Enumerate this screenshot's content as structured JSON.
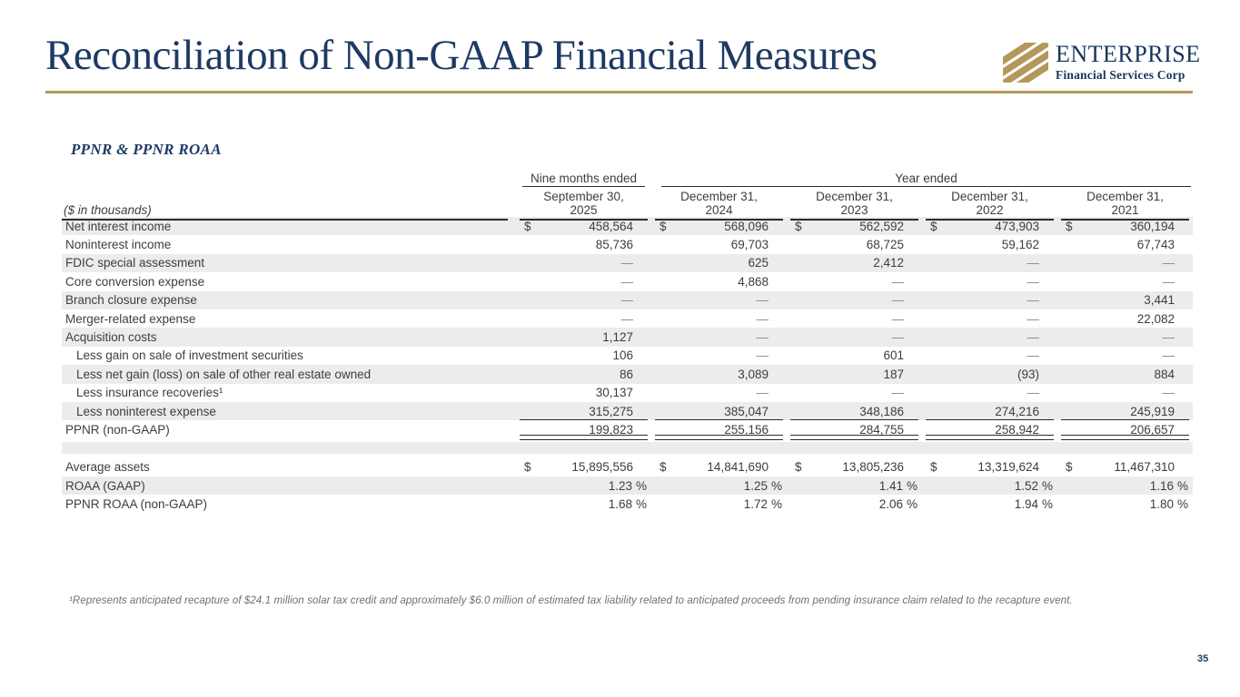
{
  "slide": {
    "title": "Reconciliation of Non-GAAP Financial Measures",
    "page_number": "35",
    "accent_gold": "#b5995a",
    "navy": "#1d3a63"
  },
  "logo": {
    "name": "ENTERPRISE",
    "subtitle": "Financial Services Corp",
    "mark": "gold-diagonal-stripes",
    "gold": "#b3985c"
  },
  "section": {
    "heading": "PPNR & PPNR ROAA",
    "units_note": "($ in thousands)"
  },
  "table": {
    "currency_symbol": "$",
    "group_headers": [
      {
        "label": "Nine months ended",
        "span": 1
      },
      {
        "label": "Year ended",
        "span": 4
      }
    ],
    "column_headers": [
      {
        "line1": "September 30,",
        "line2": "2025"
      },
      {
        "line1": "December 31,",
        "line2": "2024"
      },
      {
        "line1": "December 31,",
        "line2": "2023"
      },
      {
        "line1": "December 31,",
        "line2": "2022"
      },
      {
        "line1": "December 31,",
        "line2": "2021"
      }
    ],
    "rows": [
      {
        "label": "Net interest income",
        "dollar": true,
        "values": [
          "458,564",
          "568,096",
          "562,592",
          "473,903",
          "360,194"
        ]
      },
      {
        "label": "Noninterest income",
        "values": [
          "85,736",
          "69,703",
          "68,725",
          "59,162",
          "67,743"
        ]
      },
      {
        "label": "FDIC special assessment",
        "values": [
          "—",
          "625",
          "2,412",
          "—",
          "—"
        ]
      },
      {
        "label": "Core conversion expense",
        "values": [
          "—",
          "4,868",
          "—",
          "—",
          "—"
        ]
      },
      {
        "label": "Branch closure expense",
        "values": [
          "—",
          "—",
          "—",
          "—",
          "3,441"
        ]
      },
      {
        "label": "Merger-related expense",
        "values": [
          "—",
          "—",
          "—",
          "—",
          "22,082"
        ]
      },
      {
        "label": "Acquisition costs",
        "values": [
          "1,127",
          "—",
          "—",
          "—",
          "—"
        ]
      },
      {
        "label": "Less gain on sale of investment securities",
        "indent": true,
        "values": [
          "106",
          "—",
          "601",
          "—",
          "—"
        ]
      },
      {
        "label": "Less net gain (loss) on sale of other real estate owned",
        "indent": true,
        "values": [
          "86",
          "3,089",
          "187",
          "(93)",
          "884"
        ]
      },
      {
        "label": "Less insurance recoveries¹",
        "indent": true,
        "values": [
          "30,137",
          "—",
          "—",
          "—",
          "—"
        ]
      },
      {
        "label": "Less noninterest expense",
        "indent": true,
        "underline": "single",
        "values": [
          "315,275",
          "385,047",
          "348,186",
          "274,216",
          "245,919"
        ]
      },
      {
        "label": "PPNR (non-GAAP)",
        "underline": "double",
        "values": [
          "199,823",
          "255,156",
          "284,755",
          "258,942",
          "206,657"
        ]
      }
    ],
    "bottom_rows": [
      {
        "label": "Average assets",
        "dollar": true,
        "values": [
          "15,895,556",
          "14,841,690",
          "13,805,236",
          "13,319,624",
          "11,467,310"
        ]
      },
      {
        "label": "ROAA (GAAP)",
        "suffix": "%",
        "values": [
          "1.23",
          "1.25",
          "1.41",
          "1.52",
          "1.16"
        ]
      },
      {
        "label": "PPNR ROAA (non-GAAP)",
        "suffix": "%",
        "values": [
          "1.68",
          "1.72",
          "2.06",
          "1.94",
          "1.80"
        ]
      }
    ]
  },
  "footnote": "¹Represents anticipated recapture of $24.1 million solar tax credit and approximately $6.0 million of estimated tax liability related to anticipated proceeds from pending insurance claim related to the recapture event."
}
